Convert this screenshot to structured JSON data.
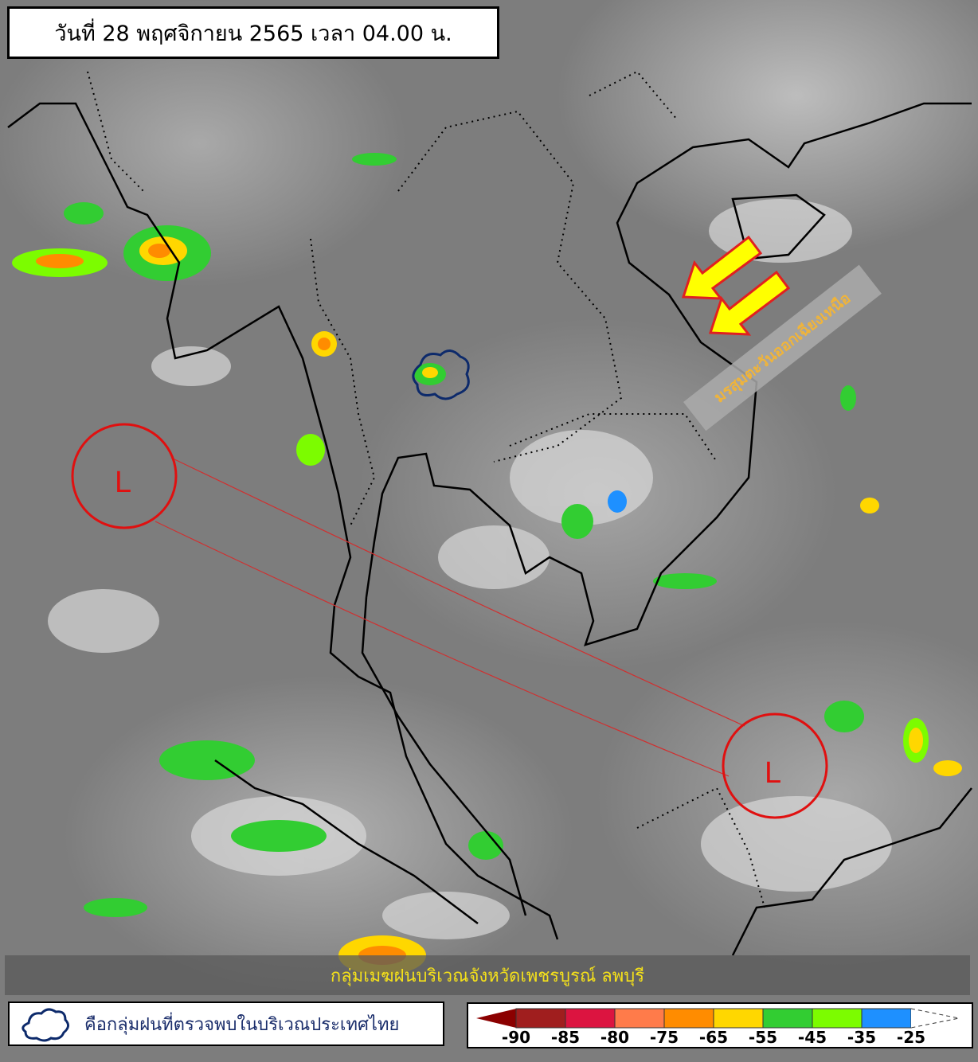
{
  "header": {
    "title": "วันที่ 28 พฤศจิกายน 2565 เวลา 04.00 น."
  },
  "annotations": {
    "monsoon_label": "มรสุมตะวันออกเฉียงเหนือ",
    "low_pressure_label": "L",
    "caption": "กลุ่มเมฆฝนบริเวณจังหวัดเพชรบูรณ์ ลพบุรี"
  },
  "legend": {
    "cloud_icon": "cloud-outline-icon",
    "cloud_description": "คือกลุ่มฝนที่ตรวจพบในบริเวณประเทศไทย",
    "scale": [
      {
        "label": "-90",
        "color": "#a01e1e"
      },
      {
        "label": "-85",
        "color": "#dc1440"
      },
      {
        "label": "-80",
        "color": "#ff7b4a"
      },
      {
        "label": "-75",
        "color": "#ff8c00"
      },
      {
        "label": "-65",
        "color": "#ffd700"
      },
      {
        "label": "-55",
        "color": "#32cd32"
      },
      {
        "label": "-45",
        "color": "#7cfc00"
      },
      {
        "label": "-35",
        "color": "#1e90ff"
      },
      {
        "label": "-25",
        "color": "#ffffff"
      }
    ],
    "low_end_color": "#8b0000"
  }
}
